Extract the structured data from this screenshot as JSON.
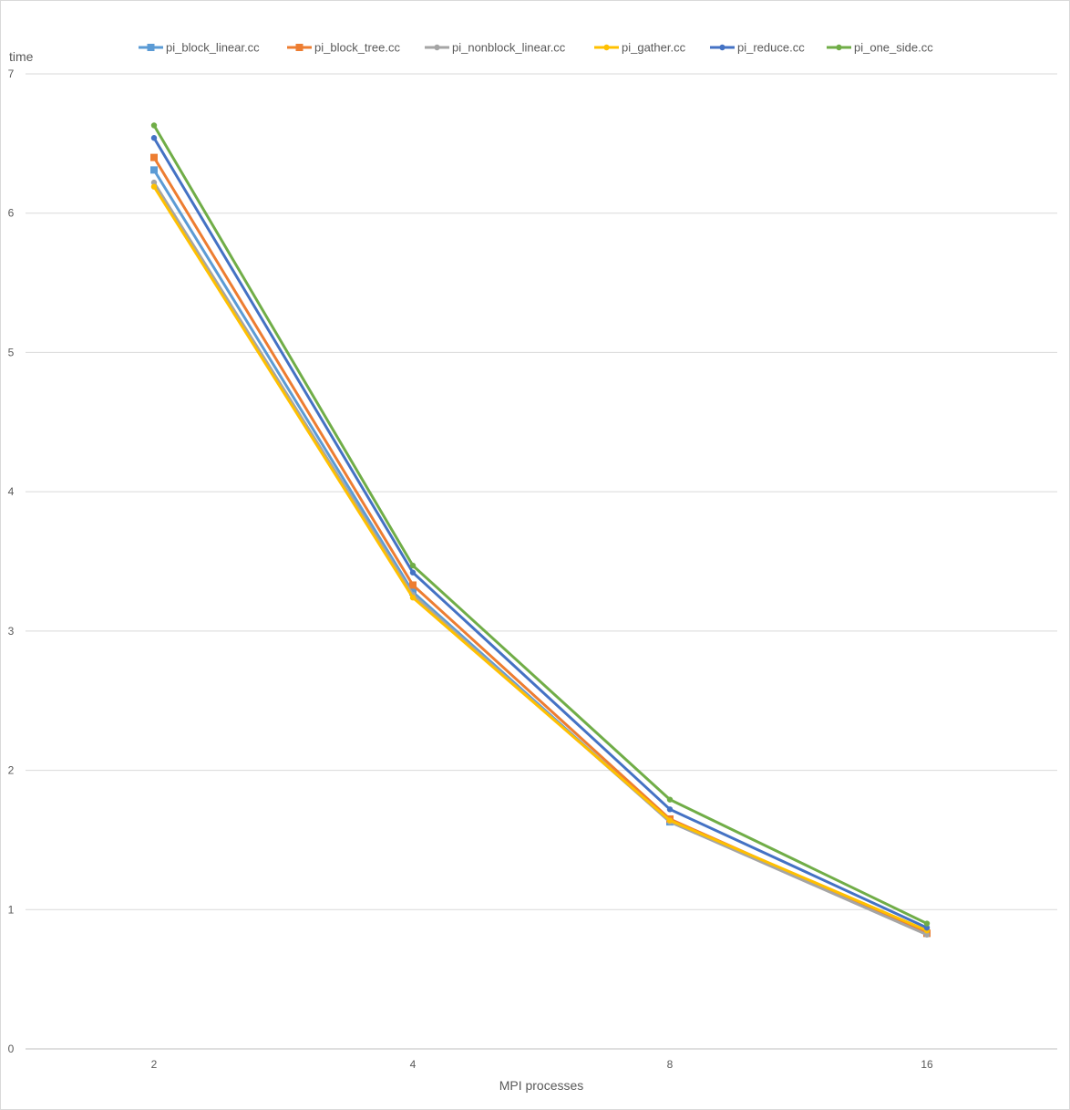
{
  "chart_data": {
    "type": "line",
    "title": "",
    "xlabel": "MPI processes",
    "ylabel": "time",
    "categories": [
      "2",
      "4",
      "8",
      "16"
    ],
    "ylim": [
      0,
      7
    ],
    "yticks": [
      "0",
      "1",
      "2",
      "3",
      "4",
      "5",
      "6",
      "7"
    ],
    "grid": true,
    "legend_position": "top",
    "series": [
      {
        "name": "pi_block_linear.cc",
        "color": "#5B9BD5",
        "marker": "square",
        "values": [
          6.31,
          3.28,
          1.63,
          0.83
        ]
      },
      {
        "name": "pi_block_tree.cc",
        "color": "#ED7D31",
        "marker": "square",
        "values": [
          6.4,
          3.33,
          1.65,
          0.83
        ]
      },
      {
        "name": "pi_nonblock_linear.cc",
        "color": "#A5A5A5",
        "marker": "circle",
        "values": [
          6.22,
          3.26,
          1.63,
          0.82
        ]
      },
      {
        "name": "pi_gather.cc",
        "color": "#FFC000",
        "marker": "circle",
        "values": [
          6.19,
          3.24,
          1.64,
          0.85
        ]
      },
      {
        "name": "pi_reduce.cc",
        "color": "#4472C4",
        "marker": "circle",
        "values": [
          6.54,
          3.42,
          1.72,
          0.87
        ]
      },
      {
        "name": "pi_one_side.cc",
        "color": "#70AD47",
        "marker": "circle",
        "values": [
          6.63,
          3.47,
          1.79,
          0.9
        ]
      }
    ]
  }
}
